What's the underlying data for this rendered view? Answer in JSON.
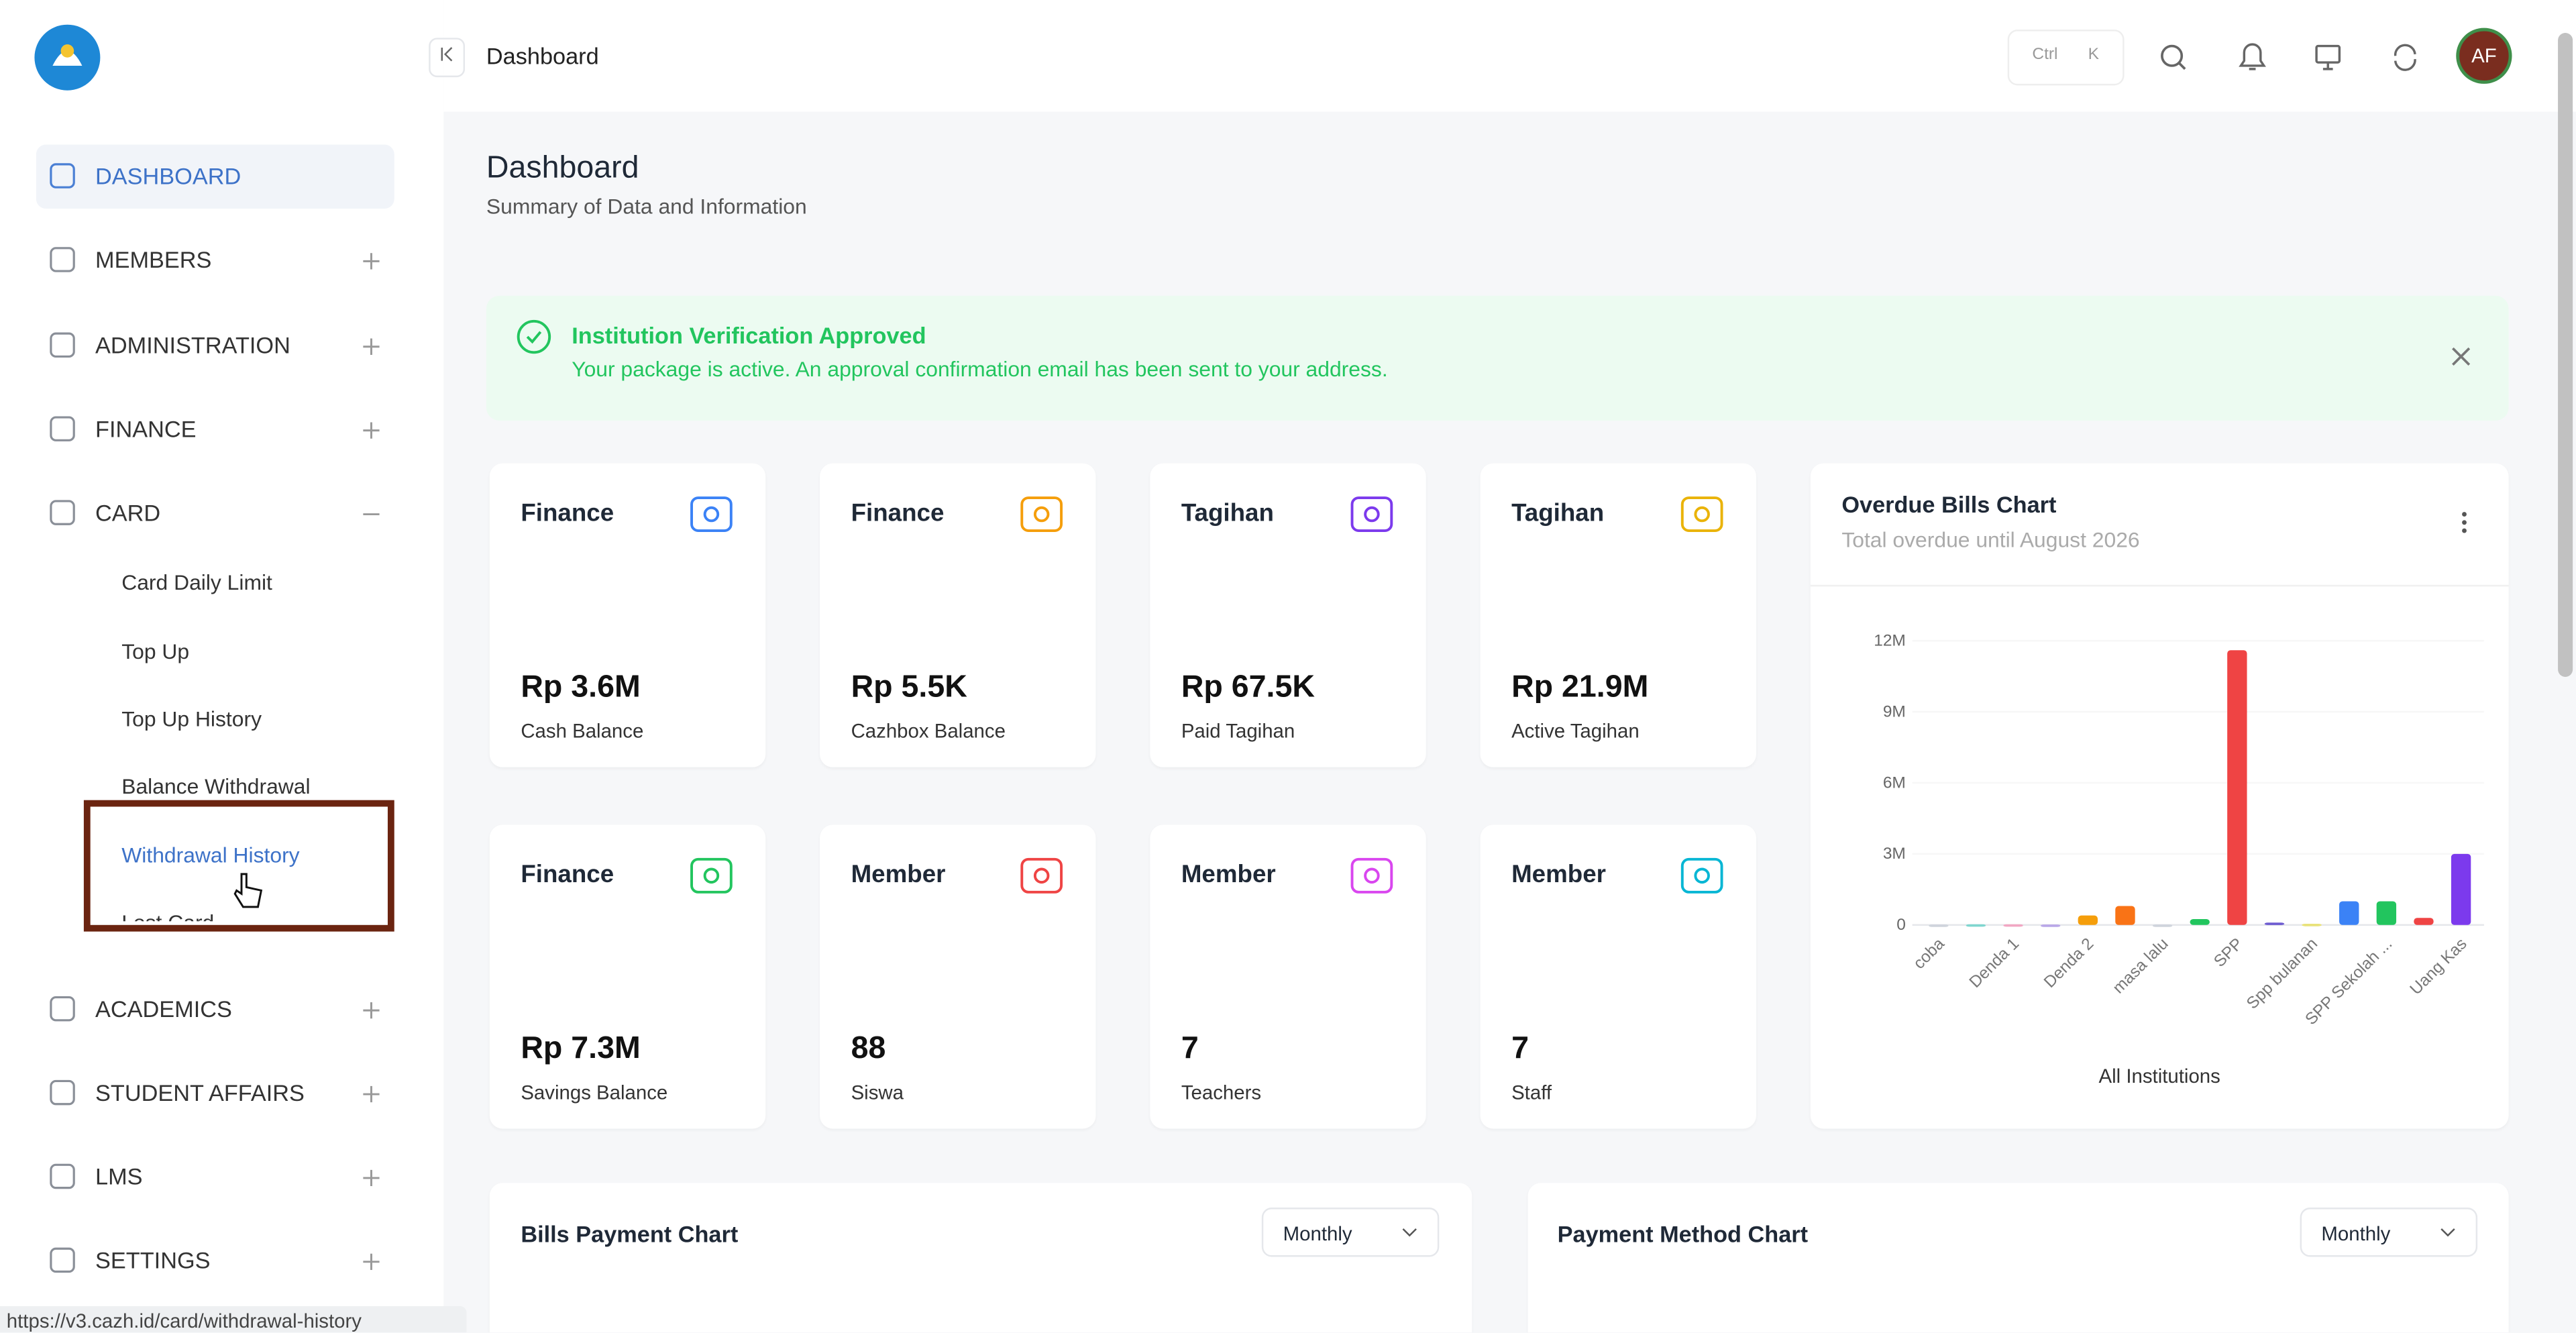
{
  "header": {
    "breadcrumb": "Dashboard",
    "shortcut": [
      "Ctrl",
      "K"
    ],
    "avatar": "AF"
  },
  "sidebar": {
    "menu": [
      "DASHBOARD",
      "MEMBERS",
      "ADMINISTRATION",
      "FINANCE",
      "CARD",
      "ACADEMICS",
      "STUDENT AFFAIRS",
      "LMS",
      "SETTINGS"
    ],
    "card_submenu": [
      "Card Daily Limit",
      "Top Up",
      "Top Up History",
      "Balance Withdrawal",
      "Withdrawal History",
      "Lost Card"
    ]
  },
  "page": {
    "title": "Dashboard",
    "subtitle": "Summary of Data and Information"
  },
  "alert": {
    "title": "Institution Verification Approved",
    "message": "Your package is active. An approval confirmation email has been sent to your address."
  },
  "stat_cards": [
    {
      "category": "Finance",
      "value": "Rp 3.6M",
      "label": "Cash Balance"
    },
    {
      "category": "Finance",
      "value": "Rp 5.5K",
      "label": "Cazhbox Balance"
    },
    {
      "category": "Tagihan",
      "value": "Rp 67.5K",
      "label": "Paid Tagihan"
    },
    {
      "category": "Tagihan",
      "value": "Rp 21.9M",
      "label": "Active Tagihan"
    },
    {
      "category": "Finance",
      "value": "Rp 7.3M",
      "label": "Savings Balance"
    },
    {
      "category": "Member",
      "value": "88",
      "label": "Siswa"
    },
    {
      "category": "Member",
      "value": "7",
      "label": "Teachers"
    },
    {
      "category": "Member",
      "value": "7",
      "label": "Staff"
    }
  ],
  "overdue_chart": {
    "type": "bar",
    "title": "Overdue Bills Chart",
    "subtitle": "Total overdue until August 2026",
    "x_label": "All Institutions",
    "categories": [
      "coba",
      null,
      "Denda 1",
      null,
      "Denda 2",
      null,
      "masa lalu",
      null,
      "SPP",
      null,
      "Spp bulanan",
      null,
      "SPP Sekolah ...",
      null,
      "Uang Kas"
    ],
    "values": [
      20000,
      30000,
      30000,
      20000,
      400000,
      800000,
      20000,
      250000,
      11600000,
      100000,
      50000,
      1000000,
      1000000,
      300000,
      3000000
    ],
    "colors": [
      "#cfd4dc",
      "#7fd6cf",
      "#f2a7c3",
      "#b9a7e8",
      "#f59e0b",
      "#f97316",
      "#cfd4dc",
      "#22c55e",
      "#ef4444",
      "#6d5bd0",
      "#e9e27a",
      "#3b82f6",
      "#22c55e",
      "#ef4444",
      "#7c3aed"
    ],
    "ylim": [
      0,
      12000000
    ],
    "yticks": [
      {
        "value": 0,
        "label": "0"
      },
      {
        "value": 3000000,
        "label": "3M"
      },
      {
        "value": 6000000,
        "label": "6M"
      },
      {
        "value": 9000000,
        "label": "9M"
      },
      {
        "value": 12000000,
        "label": "12M"
      }
    ]
  },
  "bills_payment_chart": {
    "title": "Bills Payment Chart",
    "period": "Monthly"
  },
  "payment_method_chart": {
    "title": "Payment Method Chart",
    "period": "Monthly"
  },
  "status_url": "https://v3.cazh.id/card/withdrawal-history"
}
